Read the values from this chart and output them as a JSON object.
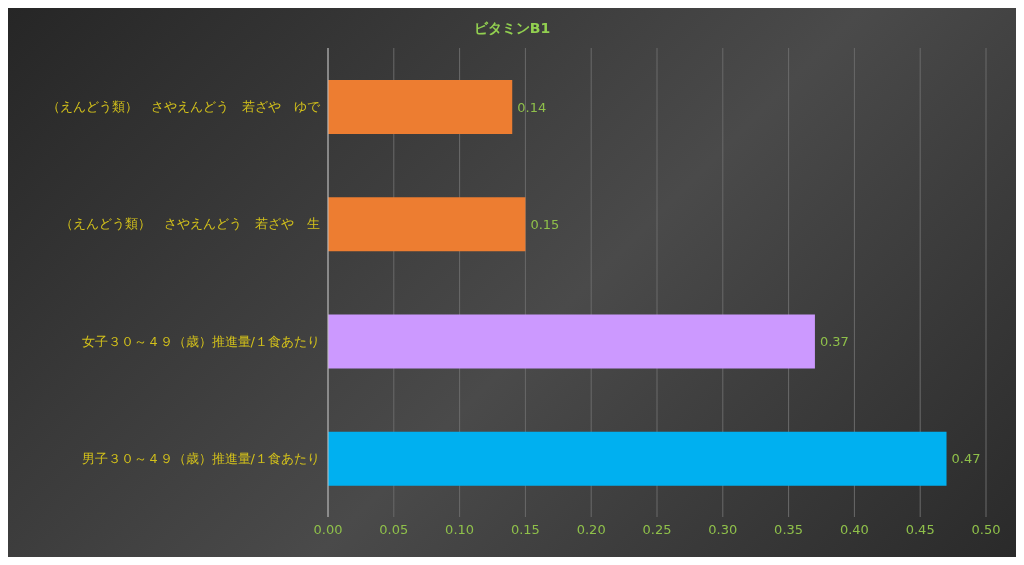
{
  "chart_data": {
    "type": "bar",
    "orientation": "horizontal",
    "title": "ビタミンB1",
    "categories": [
      "（えんどう類）　さやえんどう　若ざや　ゆで",
      "（えんどう類）　さやえんどう　若ざや　生",
      "女子３０～４９（歳）推進量/１食あたり",
      "男子３０～４９（歳）推進量/１食あたり"
    ],
    "values": [
      0.14,
      0.15,
      0.37,
      0.47
    ],
    "colors": [
      "#ed7d31",
      "#ed7d31",
      "#cc99ff",
      "#00b0f0"
    ],
    "xlim": [
      0,
      0.5
    ],
    "xticks": [
      {
        "value": 0,
        "label": "0.00"
      },
      {
        "value": 0.05,
        "label": "0.05"
      },
      {
        "value": 0.1,
        "label": "0.10"
      },
      {
        "value": 0.15,
        "label": "0.15"
      },
      {
        "value": 0.2,
        "label": "0.20"
      },
      {
        "value": 0.25,
        "label": "0.25"
      },
      {
        "value": 0.3,
        "label": "0.30"
      },
      {
        "value": 0.35,
        "label": "0.35"
      },
      {
        "value": 0.4,
        "label": "0.40"
      },
      {
        "value": 0.45,
        "label": "0.45"
      },
      {
        "value": 0.5,
        "label": "0.50"
      }
    ],
    "grid": "x",
    "data_labels": true,
    "legend": false
  }
}
